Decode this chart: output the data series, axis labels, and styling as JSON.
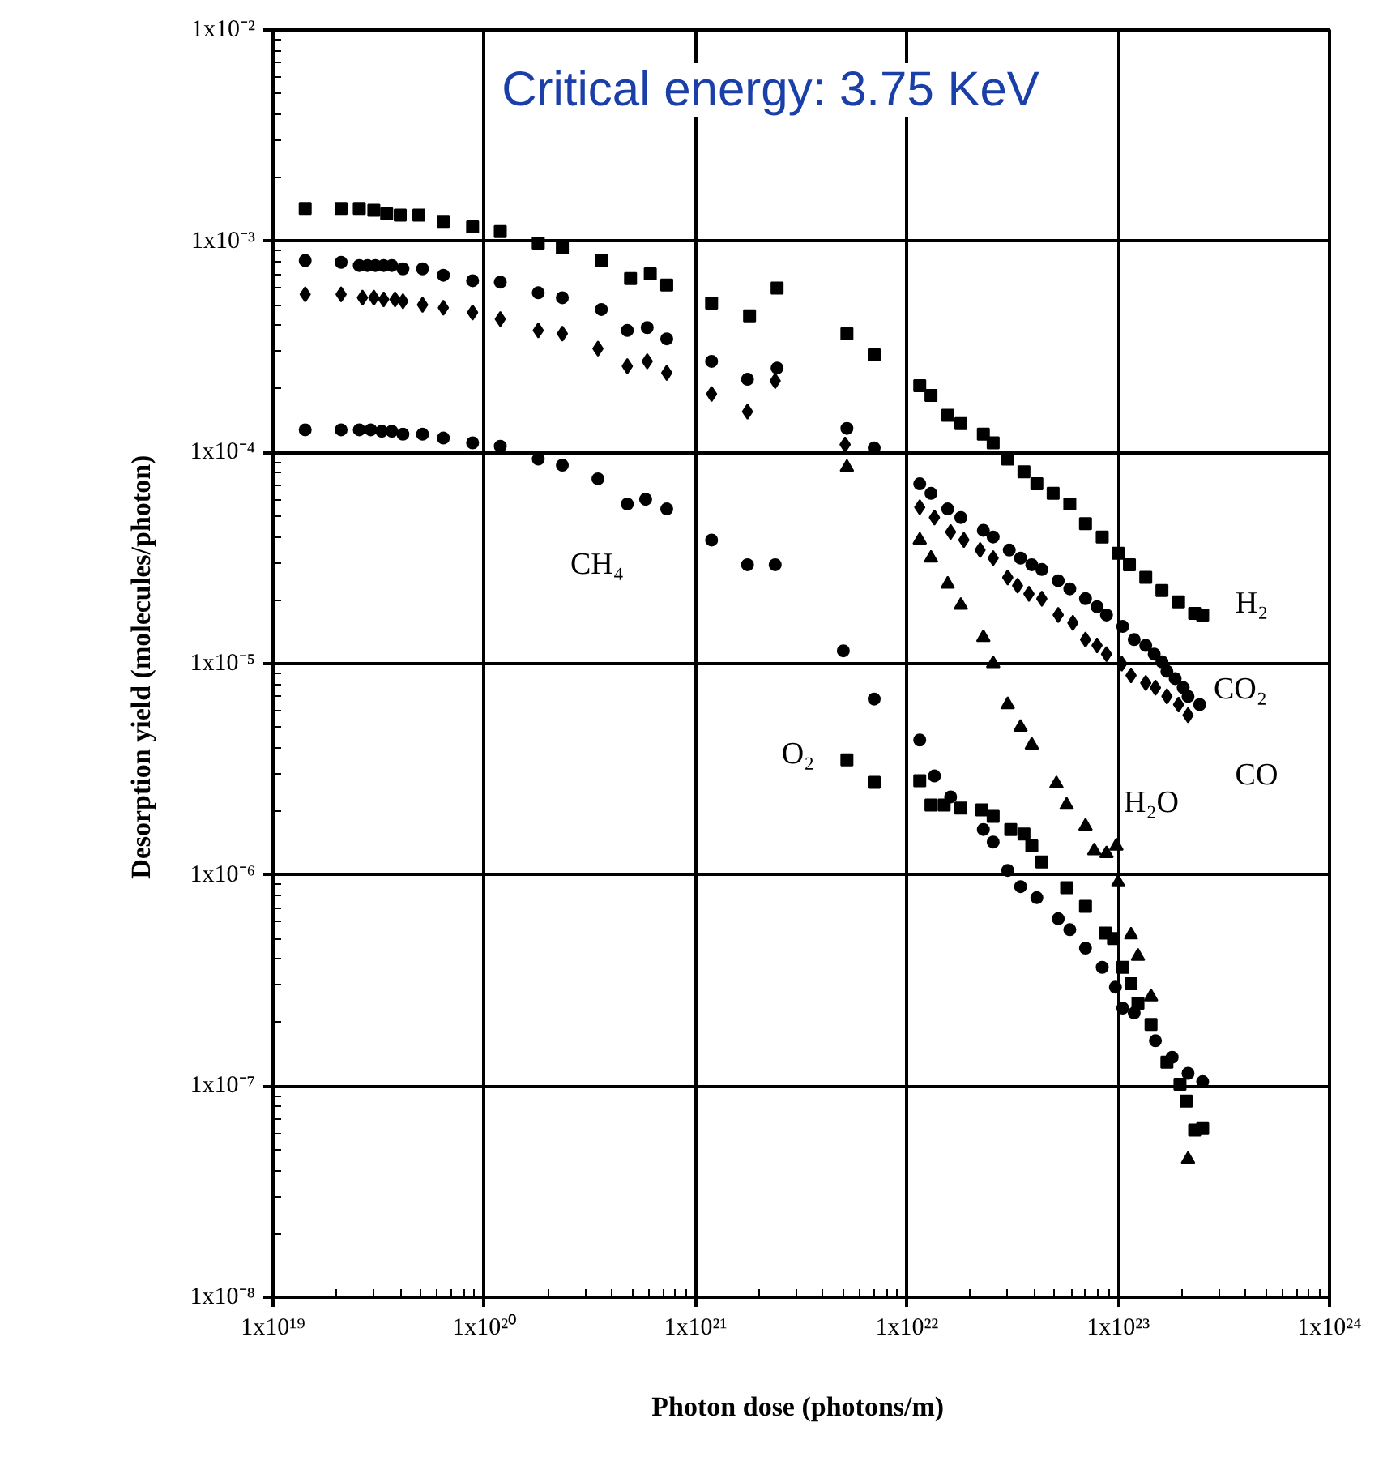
{
  "chart_data": {
    "type": "scatter",
    "title": "Critical energy: 3.75 KeV",
    "xlabel": "Photon dose  (photons/m)",
    "ylabel": "Desorption yield  (molecules/photon)",
    "log": "xy",
    "grid": true,
    "xlim": [
      1e+19,
      1e+24
    ],
    "ylim": [
      1e-08,
      0.01
    ],
    "xticks": [
      {
        "value": 1e+19,
        "label": "1x10¹⁹"
      },
      {
        "value": 1e+20,
        "label": "1x10²⁰"
      },
      {
        "value": 1e+21,
        "label": "1x10²¹"
      },
      {
        "value": 1e+22,
        "label": "1x10²²"
      },
      {
        "value": 1e+23,
        "label": "1x10²³"
      },
      {
        "value": 1e+24,
        "label": "1x10²⁴"
      }
    ],
    "yticks": [
      {
        "value": 1e-08,
        "label": "1x10⁻⁸"
      },
      {
        "value": 1e-07,
        "label": "1x10⁻⁷"
      },
      {
        "value": 1e-06,
        "label": "1x10⁻⁶"
      },
      {
        "value": 1e-05,
        "label": "1x10⁻⁵"
      },
      {
        "value": 0.0001,
        "label": "1x10⁻⁴"
      },
      {
        "value": 0.001,
        "label": "1x10⁻³"
      },
      {
        "value": 0.01,
        "label": "1x10⁻²"
      }
    ],
    "series": [
      {
        "color": "#000000",
        "marker": "square",
        "x": [
          1.42e+19,
          2.1e+19,
          2.56e+19,
          3e+19,
          3.45e+19,
          4e+19,
          4.9e+19,
          6.4e+19,
          8.8e+19,
          1.19e+20,
          1.8e+20,
          2.34e+20,
          3.58e+20,
          4.92e+20,
          6.1e+20,
          7.3e+20,
          1.19e+21,
          1.8e+21,
          2.43e+21,
          5.2e+21,
          7e+21,
          1.15e+22,
          1.3e+22,
          1.56e+22,
          1.8e+22,
          2.3e+22,
          2.56e+22,
          3e+22,
          3.58e+22,
          4.12e+22,
          4.92e+22,
          5.9e+22,
          7e+22,
          8.4e+22,
          1e+23,
          1.13e+23,
          1.35e+23,
          1.61e+23,
          1.93e+23,
          2.3e+23,
          2.51e+23
        ],
        "values": [
          0.00143,
          0.00143,
          0.00143,
          0.0014,
          0.00135,
          0.00133,
          0.00133,
          0.00124,
          0.00117,
          0.00111,
          0.00098,
          0.00093,
          0.00081,
          0.000665,
          0.0007,
          0.00062,
          0.00051,
          0.000443,
          0.0006,
          0.000365,
          0.00029,
          0.000207,
          0.000186,
          0.00015,
          0.000137,
          0.000122,
          0.000111,
          9.3e-05,
          8.1e-05,
          7.1e-05,
          6.4e-05,
          5.7e-05,
          4.6e-05,
          3.98e-05,
          3.33e-05,
          2.94e-05,
          2.56e-05,
          2.22e-05,
          1.96e-05,
          1.73e-05,
          1.7e-05
        ]
      },
      {
        "color": "#000000",
        "marker": "circle",
        "x": [
          1.42e+19,
          2.1e+19,
          2.56e+19,
          2.8e+19,
          3.05e+19,
          3.34e+19,
          3.65e+19,
          4.12e+19,
          5.1e+19,
          6.4e+19,
          8.8e+19,
          1.19e+20,
          1.8e+20,
          2.34e+20,
          3.58e+20,
          4.75e+20,
          5.9e+20,
          7.3e+20,
          1.19e+21,
          1.76e+21,
          2.43e+21,
          5.2e+21,
          7e+21,
          1.15e+22,
          1.3e+22,
          1.56e+22,
          1.8e+22,
          2.3e+22,
          2.56e+22,
          3.05e+22,
          3.45e+22,
          3.9e+22,
          4.35e+22,
          5.2e+22,
          5.9e+22,
          7e+22,
          7.94e+22,
          8.8e+22,
          1.05e+23,
          1.19e+23,
          1.35e+23,
          1.48e+23,
          1.61e+23,
          1.7e+23,
          1.86e+23,
          2.03e+23,
          2.14e+23,
          2.43e+23
        ],
        "values": [
          0.00081,
          0.000794,
          0.000767,
          0.000767,
          0.000767,
          0.000767,
          0.000767,
          0.00074,
          0.00074,
          0.00069,
          0.00065,
          0.00064,
          0.00057,
          0.00054,
          0.000475,
          0.000378,
          0.00039,
          0.000345,
          0.00027,
          0.000222,
          0.000251,
          0.00013,
          0.000105,
          7.1e-05,
          6.4e-05,
          5.4e-05,
          4.92e-05,
          4.28e-05,
          3.98e-05,
          3.45e-05,
          3.16e-05,
          2.94e-05,
          2.79e-05,
          2.47e-05,
          2.26e-05,
          2.03e-05,
          1.86e-05,
          1.7e-05,
          1.5e-05,
          1.3e-05,
          1.22e-05,
          1.11e-05,
          1.02e-05,
          9.2e-06,
          8.5e-06,
          7.7e-06,
          7e-06,
          6.4e-06
        ]
      },
      {
        "color": "#000000",
        "marker": "diamond",
        "x": [
          1.42e+19,
          2.1e+19,
          2.65e+19,
          3e+19,
          3.34e+19,
          3.78e+19,
          4.12e+19,
          5.1e+19,
          6.4e+19,
          8.8e+19,
          1.19e+20,
          1.8e+20,
          2.34e+20,
          3.45e+20,
          4.75e+20,
          5.9e+20,
          7.3e+20,
          1.19e+21,
          1.76e+21,
          2.38e+21,
          5.1e+21,
          1.15e+22,
          1.35e+22,
          1.61e+22,
          1.86e+22,
          2.22e+22,
          2.56e+22,
          3e+22,
          3.34e+22,
          3.78e+22,
          4.35e+22,
          5.2e+22,
          6.1e+22,
          7e+22,
          7.94e+22,
          8.8e+22,
          1.04e+23,
          1.15e+23,
          1.35e+23,
          1.5e+23,
          1.7e+23,
          1.93e+23,
          2.14e+23
        ],
        "values": [
          0.00056,
          0.00056,
          0.00054,
          0.00054,
          0.00053,
          0.00053,
          0.00052,
          0.0005,
          0.000484,
          0.00046,
          0.000428,
          0.000378,
          0.000365,
          0.00031,
          0.000256,
          0.00027,
          0.000238,
          0.000189,
          0.000156,
          0.000218,
          0.000109,
          5.5e-05,
          4.92e-05,
          4.2e-05,
          3.85e-05,
          3.45e-05,
          3.16e-05,
          2.56e-05,
          2.34e-05,
          2.14e-05,
          2.03e-05,
          1.7e-05,
          1.56e-05,
          1.3e-05,
          1.22e-05,
          1.11e-05,
          1e-05,
          8.8e-06,
          8.1e-06,
          7.7e-06,
          7e-06,
          6.4e-06,
          5.7e-06
        ]
      },
      {
        "color": "#000000",
        "marker": "circle",
        "x": [
          1.42e+19,
          2.1e+19,
          2.56e+19,
          2.9e+19,
          3.27e+19,
          3.65e+19,
          4.12e+19,
          5.1e+19,
          6.4e+19,
          8.8e+19,
          1.19e+20,
          1.8e+20,
          2.34e+20,
          3.45e+20,
          4.75e+20,
          5.8e+20,
          7.3e+20,
          1.19e+21,
          1.76e+21,
          2.38e+21,
          5e+21,
          7e+21,
          1.15e+22,
          1.35e+22,
          1.61e+22,
          2.3e+22,
          2.56e+22,
          3e+22,
          3.45e+22,
          4.12e+22,
          5.2e+22,
          5.9e+22,
          7e+22,
          8.4e+22,
          9.7e+22,
          1.05e+23,
          1.19e+23,
          1.5e+23,
          1.8e+23,
          2.14e+23,
          2.51e+23
        ],
        "values": [
          0.000128,
          0.000128,
          0.000128,
          0.000128,
          0.000126,
          0.000126,
          0.000122,
          0.000122,
          0.000117,
          0.000111,
          0.000107,
          9.3e-05,
          8.7e-05,
          7.5e-05,
          5.7e-05,
          6e-05,
          5.4e-05,
          3.85e-05,
          2.94e-05,
          2.94e-05,
          1.15e-05,
          6.8e-06,
          4.35e-06,
          2.94e-06,
          2.34e-06,
          1.64e-06,
          1.43e-06,
          1.05e-06,
          8.8e-07,
          7.8e-07,
          6.2e-07,
          5.5e-07,
          4.5e-07,
          3.65e-07,
          2.94e-07,
          2.34e-07,
          2.22e-07,
          1.64e-07,
          1.37e-07,
          1.15e-07,
          1.05e-07
        ]
      },
      {
        "color": "#000000",
        "marker": "triangle",
        "x": [
          5.2e+21,
          1.15e+22,
          1.3e+22,
          1.56e+22,
          1.8e+22,
          2.3e+22,
          2.56e+22,
          3e+22,
          3.45e+22,
          3.9e+22,
          5.1e+22,
          5.7e+22,
          7e+22,
          7.7e+22,
          8.8e+22,
          9.8e+22,
          1e+23,
          1.15e+23,
          1.24e+23,
          1.43e+23,
          2.14e+23
        ],
        "values": [
          8.5e-05,
          3.85e-05,
          3.16e-05,
          2.38e-05,
          1.89e-05,
          1.33e-05,
          1e-05,
          6.4e-06,
          5e-06,
          4.12e-06,
          2.7e-06,
          2.14e-06,
          1.7e-06,
          1.3e-06,
          1.26e-06,
          1.37e-06,
          9.2e-07,
          5.2e-07,
          4.12e-07,
          2.65e-07,
          4.5e-08
        ]
      },
      {
        "color": "#000000",
        "marker": "square",
        "x": [
          5.2e+21,
          7e+21,
          1.15e+22,
          1.3e+22,
          1.5e+22,
          1.8e+22,
          2.26e+22,
          2.56e+22,
          3.1e+22,
          3.58e+22,
          3.9e+22,
          4.35e+22,
          5.7e+22,
          7e+22,
          8.7e+22,
          9.5e+22,
          1.05e+23,
          1.15e+23,
          1.24e+23,
          1.43e+23,
          1.7e+23,
          1.96e+23,
          2.1e+23,
          2.3e+23,
          2.51e+23
        ],
        "values": [
          3.5e-06,
          2.74e-06,
          2.79e-06,
          2.14e-06,
          2.14e-06,
          2.07e-06,
          2.03e-06,
          1.89e-06,
          1.64e-06,
          1.56e-06,
          1.37e-06,
          1.15e-06,
          8.7e-07,
          7.1e-07,
          5.3e-07,
          5e-07,
          3.65e-07,
          3.05e-07,
          2.47e-07,
          1.96e-07,
          1.3e-07,
          1.02e-07,
          8.5e-08,
          6.2e-08,
          6.3e-08
        ]
      }
    ],
    "annotations": [
      "H₂",
      "CO₂",
      "CO",
      "H₂O",
      "O₂",
      "CH₄"
    ]
  }
}
